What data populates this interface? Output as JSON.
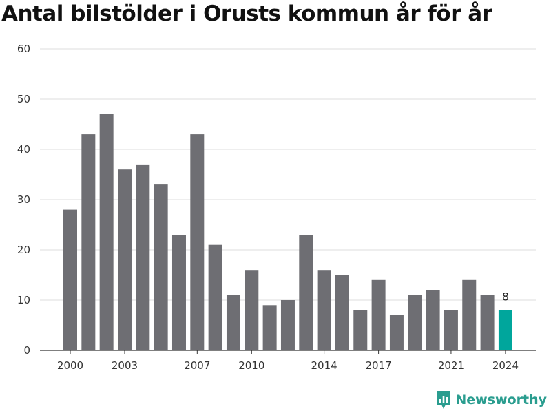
{
  "chart_data": {
    "type": "bar",
    "title": "Antal bilstölder i Orusts kommun år för år",
    "categories": [
      2000,
      2001,
      2002,
      2003,
      2004,
      2005,
      2006,
      2007,
      2008,
      2009,
      2010,
      2011,
      2012,
      2013,
      2014,
      2015,
      2016,
      2017,
      2018,
      2019,
      2020,
      2021,
      2022,
      2023,
      2024
    ],
    "values": [
      28,
      43,
      47,
      36,
      37,
      33,
      23,
      43,
      21,
      11,
      16,
      9,
      10,
      23,
      16,
      15,
      8,
      14,
      7,
      11,
      12,
      8,
      14,
      11,
      8
    ],
    "x_tick_labels": [
      "2000",
      "2003",
      "2007",
      "2010",
      "2014",
      "2017",
      "2021",
      "2024"
    ],
    "y_ticks": [
      0,
      10,
      20,
      30,
      40,
      50,
      60
    ],
    "ylim": [
      0,
      60
    ],
    "grid": true,
    "highlight": {
      "category": 2024,
      "label": "8"
    },
    "colors": {
      "bar": "#6e6e73",
      "highlight": "#00a69c",
      "grid": "#dddddd",
      "axis": "#333333"
    }
  },
  "brand": {
    "name": "Newsworthy",
    "icon": "newsworthy-logo-icon",
    "color": "#2a9d8f"
  }
}
